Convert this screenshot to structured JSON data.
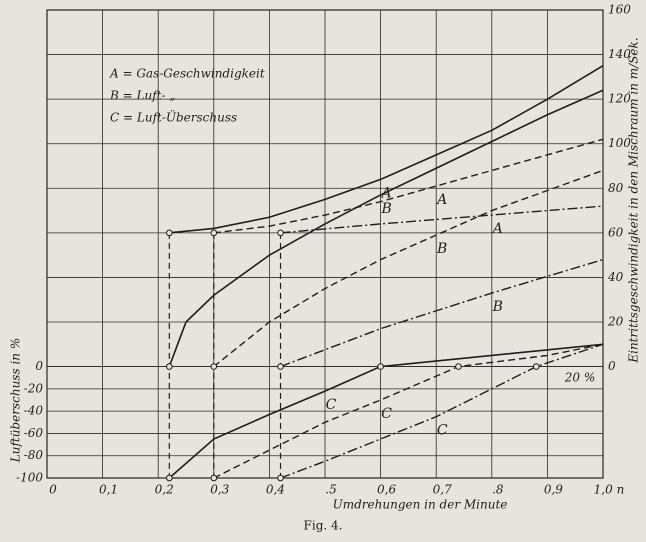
{
  "chart_data": {
    "type": "line",
    "caption": "Fig. 4.",
    "x_label": "Umdrehungen in der Minute",
    "y_label": "Luftüberschuss in %",
    "y2_label": "Eintrittsgeschwindigkeit in den Mischraum in m/Sek.",
    "legend": [
      "A = Gas-Geschwindigkeit",
      "B = Luft-       „",
      "C = Luft-Überschuss"
    ],
    "annotations": [
      "20 %"
    ],
    "grid": true,
    "color": "#1e1e1e",
    "xlim": [
      0,
      1.0
    ],
    "xticks": [
      0,
      {
        "value": 0.1,
        "label": "0,1"
      },
      {
        "value": 0.2,
        "label": "0,2"
      },
      {
        "value": 0.3,
        "label": "0,3"
      },
      {
        "value": 0.4,
        "label": "0,4"
      },
      {
        "value": 0.5,
        "label": ".5"
      },
      {
        "value": 0.6,
        "label": "0,6"
      },
      {
        "value": 0.7,
        "label": "0,7"
      },
      {
        "value": 0.8,
        "label": ".8"
      },
      {
        "value": 0.9,
        "label": "0,9"
      },
      {
        "value": 1.0,
        "label": "1,0 n"
      }
    ],
    "ylim": [
      -100,
      320
    ],
    "yticks": [
      0,
      -20,
      -40,
      -60,
      -80,
      -100
    ],
    "y2lim": [
      -50,
      160
    ],
    "y2ticks": [
      0,
      20,
      40,
      60,
      80,
      100,
      120,
      140,
      160
    ],
    "series": [
      {
        "name": "A",
        "dash": "solid",
        "axis": "y2",
        "x": [
          0.22,
          0.3,
          0.4,
          0.5,
          0.6,
          0.7,
          0.8,
          0.9,
          1.0
        ],
        "values": [
          60,
          62,
          67,
          75,
          84,
          95,
          106,
          120,
          135
        ]
      },
      {
        "name": "A",
        "dash": "dashed",
        "axis": "y2",
        "x": [
          0.3,
          0.4,
          0.5,
          0.6,
          0.7,
          0.8,
          0.9,
          1.0
        ],
        "values": [
          60,
          63,
          68,
          74,
          81,
          88,
          95,
          102
        ]
      },
      {
        "name": "A",
        "dash": "dashdot",
        "axis": "y2",
        "x": [
          0.42,
          0.6,
          0.8,
          1.0
        ],
        "values": [
          60,
          64,
          68,
          72
        ]
      },
      {
        "name": "B",
        "dash": "solid",
        "axis": "y2",
        "x": [
          0.22,
          0.25,
          0.3,
          0.4,
          0.5,
          0.6,
          0.7,
          0.8,
          0.9,
          1.0
        ],
        "values": [
          0,
          20,
          32,
          50,
          64,
          77,
          89,
          101,
          113,
          124
        ]
      },
      {
        "name": "B",
        "dash": "dashed",
        "axis": "y2",
        "x": [
          0.3,
          0.4,
          0.5,
          0.6,
          0.7,
          0.8,
          0.9,
          1.0
        ],
        "values": [
          0,
          20,
          35,
          48,
          59,
          70,
          79,
          88
        ]
      },
      {
        "name": "B",
        "dash": "dashdot",
        "axis": "y2",
        "x": [
          0.42,
          0.6,
          0.8,
          1.0
        ],
        "values": [
          0,
          17,
          33,
          48
        ]
      },
      {
        "name": "C",
        "dash": "solid",
        "x": [
          0.22,
          0.3,
          0.4,
          0.5,
          0.6,
          0.8,
          1.0
        ],
        "values": [
          -100,
          -65,
          -43,
          -22,
          0,
          10,
          20
        ]
      },
      {
        "name": "C",
        "dash": "dashed",
        "x": [
          0.3,
          0.4,
          0.5,
          0.6,
          0.74,
          0.9,
          1.0
        ],
        "values": [
          -100,
          -75,
          -50,
          -30,
          0,
          10,
          20
        ]
      },
      {
        "name": "C",
        "dash": "dashdot",
        "x": [
          0.42,
          0.5,
          0.6,
          0.7,
          0.88,
          0.94,
          1.0
        ],
        "values": [
          -100,
          -85,
          -65,
          -45,
          0,
          10,
          20
        ]
      }
    ]
  }
}
